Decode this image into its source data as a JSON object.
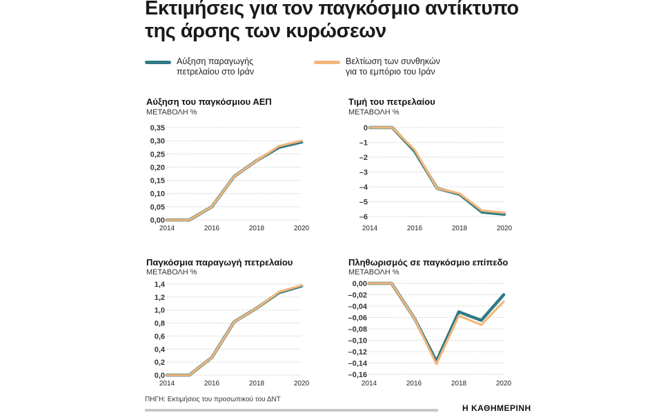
{
  "title_lines": [
    "Εκτιμήσεις για τον παγκόσμιο αντίκτυπο",
    "της άρσης των κυρώσεων"
  ],
  "legend": [
    {
      "lines": [
        "Αύξηση παραγωγής",
        "πετρελαίου στο Ιράν"
      ],
      "color": "#2f7a84"
    },
    {
      "lines": [
        "Βελτίωση των συνθηκών",
        "για το εμπόριο του Ιράν"
      ],
      "color": "#f3b67a"
    }
  ],
  "source": "ΠΗΓΗ: Εκτιμήσεις του προσωπικού του ΔΝΤ",
  "brand": "Η ΚΑΘΗΜΕΡΙΝΗ",
  "colors": {
    "series_a": "#2f7a84",
    "series_b": "#f3b67a",
    "grid": "#bdbdbd"
  },
  "chart_data": [
    {
      "type": "line",
      "title": "Αύξηση του παγκόσμιου ΑΕΠ",
      "ylabel": "ΜΕΤΑΒΟΛΗ %",
      "x": [
        2014,
        2015,
        2016,
        2017,
        2018,
        2019,
        2020
      ],
      "x_tick_labels": [
        "2014",
        "2016",
        "2018",
        "2020"
      ],
      "x_tick_values": [
        2014,
        2016,
        2018,
        2020
      ],
      "y_tick_labels": [
        "0,35",
        "0,30",
        "0,25",
        "0,20",
        "0,15",
        "0,10",
        "0,05",
        "0,00"
      ],
      "y_tick_values": [
        0.35,
        0.3,
        0.25,
        0.2,
        0.15,
        0.1,
        0.05,
        0.0
      ],
      "ylim": [
        0,
        0.35
      ],
      "series": [
        {
          "values": [
            0.0,
            0.0,
            0.05,
            0.165,
            0.225,
            0.275,
            0.295
          ]
        },
        {
          "values": [
            0.0,
            0.0,
            0.05,
            0.165,
            0.225,
            0.28,
            0.3
          ]
        }
      ]
    },
    {
      "type": "line",
      "title": "Τιμή του πετρελαίου",
      "ylabel": "ΜΕΤΑΒΟΛΗ %",
      "x": [
        2014,
        2015,
        2016,
        2017,
        2018,
        2019,
        2020
      ],
      "x_tick_labels": [
        "2014",
        "2016",
        "2018",
        "2020"
      ],
      "x_tick_values": [
        2014,
        2016,
        2018,
        2020
      ],
      "y_tick_labels": [
        "0",
        "–1",
        "–2",
        "–3",
        "–4",
        "–5",
        "–6"
      ],
      "y_tick_values": [
        0,
        -1,
        -2,
        -3,
        -4,
        -5,
        -6
      ],
      "ylim": [
        -6,
        0
      ],
      "series": [
        {
          "values": [
            0.0,
            0.0,
            -1.6,
            -4.1,
            -4.5,
            -5.7,
            -5.85
          ]
        },
        {
          "values": [
            0.0,
            0.0,
            -1.5,
            -4.1,
            -4.45,
            -5.6,
            -5.75
          ]
        }
      ]
    },
    {
      "type": "line",
      "title": "Παγκόσμια παραγωγή πετρελαίου",
      "ylabel": "ΜΕΤΑΒΟΛΗ %",
      "x": [
        2014,
        2015,
        2016,
        2017,
        2018,
        2019,
        2020
      ],
      "x_tick_labels": [
        "2014",
        "2016",
        "2018",
        "2020"
      ],
      "x_tick_values": [
        2014,
        2016,
        2018,
        2020
      ],
      "y_tick_labels": [
        "1,4",
        "1,2",
        "1,0",
        "0,8",
        "0,6",
        "0,4",
        "0,2",
        "0,0"
      ],
      "y_tick_values": [
        1.4,
        1.2,
        1.0,
        0.8,
        0.6,
        0.4,
        0.2,
        0.0
      ],
      "ylim": [
        0,
        1.4
      ],
      "series": [
        {
          "values": [
            0.0,
            0.0,
            0.27,
            0.82,
            1.03,
            1.27,
            1.37
          ]
        },
        {
          "values": [
            0.0,
            0.0,
            0.27,
            0.82,
            1.03,
            1.28,
            1.38
          ]
        }
      ]
    },
    {
      "type": "line",
      "title": "Πληθωρισμός σε παγκόσμιο επίπεδο",
      "ylabel": "ΜΕΤΑΒΟΛΗ %",
      "x": [
        2014,
        2015,
        2016,
        2017,
        2018,
        2019,
        2020
      ],
      "x_tick_labels": [
        "2014",
        "2016",
        "2018",
        "2020"
      ],
      "x_tick_values": [
        2014,
        2016,
        2018,
        2020
      ],
      "y_tick_labels": [
        "0,00",
        "–0,02",
        "–0,04",
        "–0,06",
        "–0,08",
        "–0,10",
        "–0,12",
        "–0,14",
        "–0,16"
      ],
      "y_tick_values": [
        0,
        -0.02,
        -0.04,
        -0.06,
        -0.08,
        -0.1,
        -0.12,
        -0.14,
        -0.16
      ],
      "ylim": [
        -0.16,
        0
      ],
      "series": [
        {
          "values": [
            0.0,
            0.0,
            -0.06,
            -0.137,
            -0.05,
            -0.065,
            -0.02
          ]
        },
        {
          "values": [
            0.0,
            0.0,
            -0.06,
            -0.142,
            -0.057,
            -0.073,
            -0.032
          ]
        }
      ]
    }
  ]
}
